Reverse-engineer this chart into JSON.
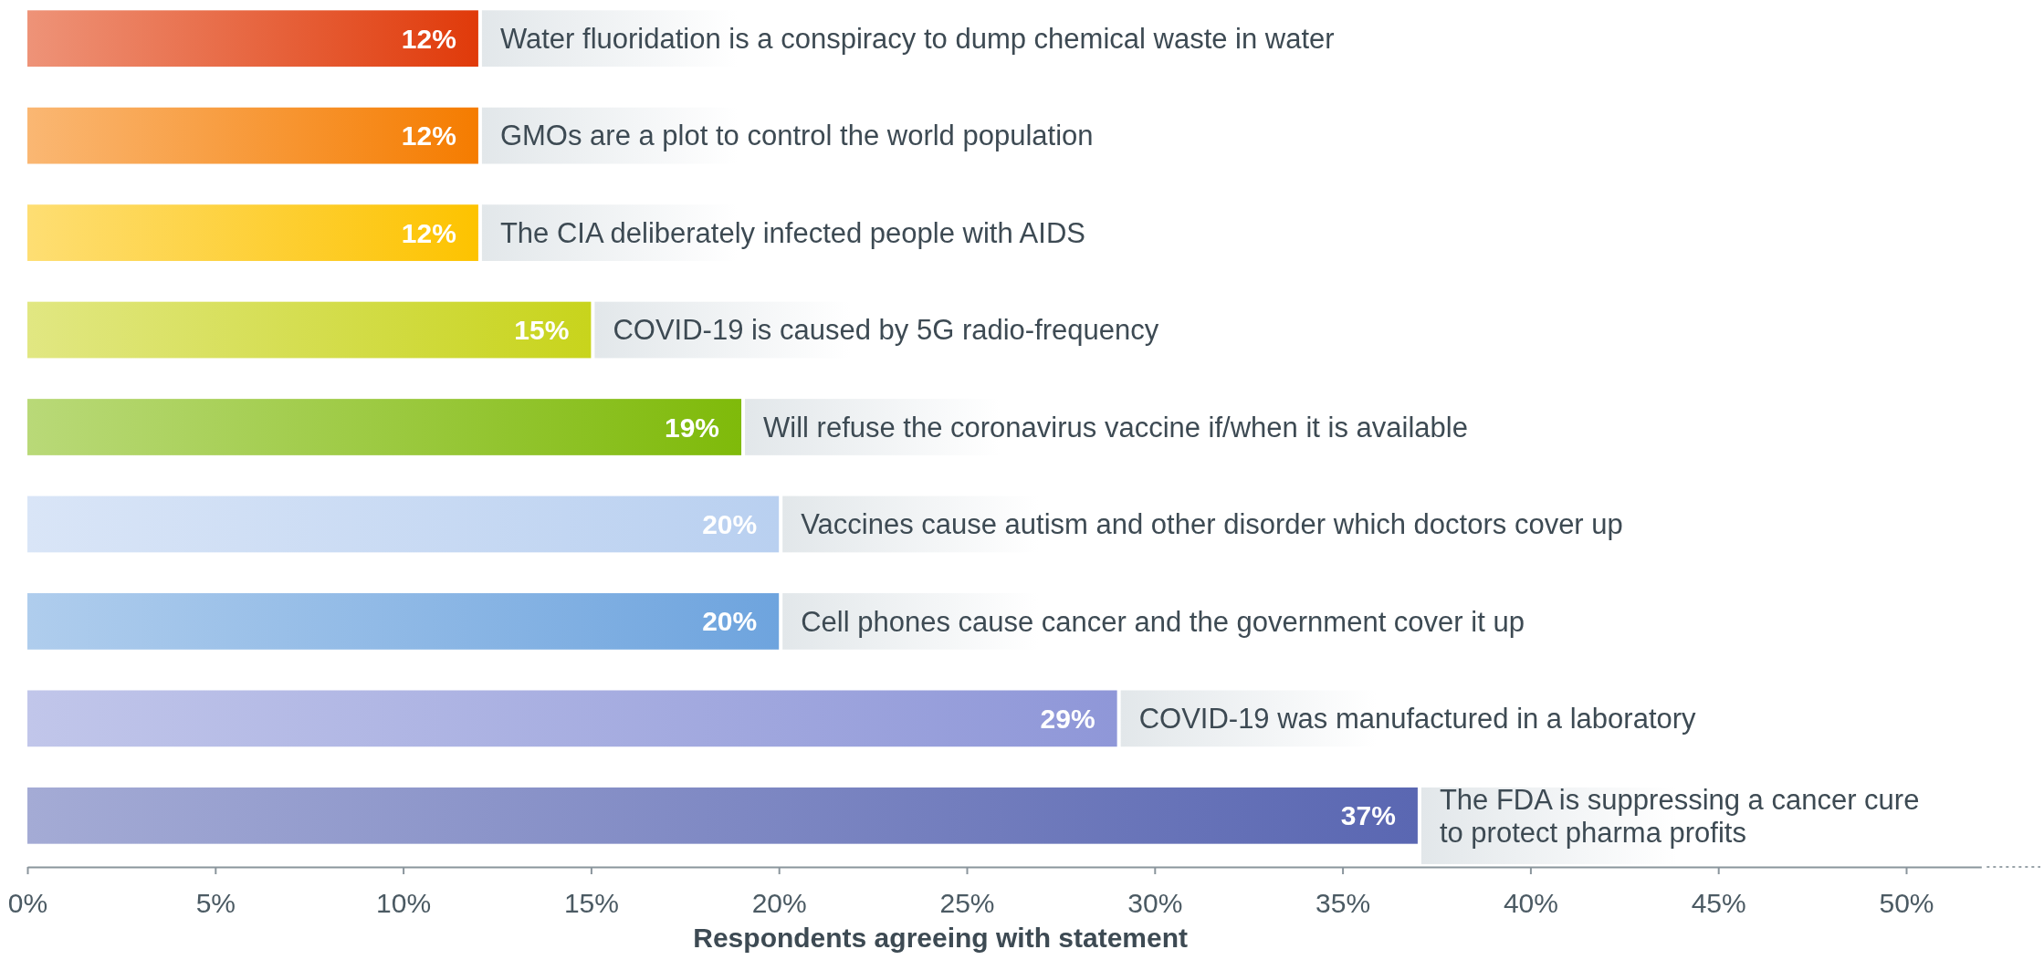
{
  "chart_data": {
    "type": "bar",
    "orientation": "horizontal",
    "xlabel": "Respondents agreeing with statement",
    "categories": [
      "Water fluoridation is a conspiracy to dump chemical waste in water",
      "GMOs are a plot to control the world population",
      "The CIA deliberately infected people with AIDS",
      "COVID-19 is caused by 5G radio-frequency",
      "Will refuse the coronavirus vaccine if/when it is available",
      "Vaccines cause autism and other disorder which doctors cover up",
      "Cell phones cause cancer and the government cover it up",
      "COVID-19 was manufactured in a laboratory",
      "The FDA is suppressing a cancer cure to protect pharma profits"
    ],
    "values": [
      12,
      12,
      12,
      15,
      19,
      20,
      20,
      29,
      37
    ],
    "value_labels": [
      "12%",
      "12%",
      "12%",
      "15%",
      "19%",
      "20%",
      "20%",
      "29%",
      "37%"
    ],
    "colors": [
      "#e03a0a",
      "#f57c00",
      "#fdc300",
      "#c8d41c",
      "#7fba0a",
      "#b9d0f0",
      "#6ea4de",
      "#8f97d8",
      "#5a67b2"
    ],
    "xlim": [
      0,
      52
    ],
    "xticks": [
      {
        "value": 0,
        "label": "0%"
      },
      {
        "value": 5,
        "label": "5%"
      },
      {
        "value": 10,
        "label": "10%"
      },
      {
        "value": 15,
        "label": "15%"
      },
      {
        "value": 20,
        "label": "20%"
      },
      {
        "value": 25,
        "label": "25%"
      },
      {
        "value": 30,
        "label": "30%"
      },
      {
        "value": 35,
        "label": "35%"
      },
      {
        "value": 40,
        "label": "40%"
      },
      {
        "value": 45,
        "label": "45%"
      },
      {
        "value": 50,
        "label": "50%"
      }
    ],
    "grid": false
  }
}
